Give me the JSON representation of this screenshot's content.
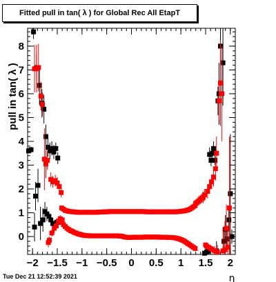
{
  "title": "Fitted pull in tan( λ ) for Global Rec All EtapT",
  "timestamp": "Tue Dec 21 12:52:39 2021",
  "chart_data": {
    "type": "scatter",
    "title": "Fitted pull in tan( λ ) for Global Rec All EtapT",
    "xlabel": "η",
    "ylabel": "pull in tan( λ )",
    "xlim": [
      -2.1,
      2.1
    ],
    "ylim": [
      -0.75,
      8.75
    ],
    "x_ticks": [
      -2,
      -1.5,
      -1,
      -0.5,
      0,
      0.5,
      1,
      1.5,
      2
    ],
    "x_tick_labels": [
      "−2",
      "−1.5",
      "−1",
      "−0.5",
      "0",
      "0.5",
      "1",
      "1.5",
      "2"
    ],
    "y_ticks": [
      0,
      1,
      2,
      3,
      4,
      5,
      6,
      7,
      8
    ],
    "y_tick_labels": [
      "0",
      "1",
      "2",
      "3",
      "4",
      "5",
      "6",
      "7",
      "8"
    ],
    "grid": false,
    "legend": "none",
    "series": [
      {
        "marker": "square",
        "color": "#000000",
        "points": [
          [
            -2.08,
            3.6,
            0.1
          ],
          [
            -2.03,
            3.65,
            0.12
          ],
          [
            -1.98,
            8.6,
            0.3
          ],
          [
            -1.96,
            0.4,
            0.6
          ],
          [
            -1.94,
            1.7,
            0.6
          ],
          [
            -1.92,
            7.1,
            0.6
          ],
          [
            -1.89,
            2.15,
            0.7
          ],
          [
            -1.86,
            6.35,
            0.8
          ],
          [
            -1.84,
            0.55,
            0.7
          ],
          [
            -1.81,
            5.6,
            0.6
          ],
          [
            -1.79,
            0.7,
            0.5
          ],
          [
            -1.77,
            5.35,
            0.6
          ],
          [
            -1.75,
            1.05,
            0.4
          ],
          [
            -1.73,
            4.2,
            0.5
          ],
          [
            -1.71,
            0.95,
            0.3
          ],
          [
            -1.69,
            3.75,
            0.4
          ],
          [
            -1.67,
            0.85,
            0.2
          ],
          [
            -1.65,
            3.6,
            0.35
          ],
          [
            -1.63,
            0.7,
            0.2
          ],
          [
            -1.61,
            3.7,
            0.3
          ],
          [
            -1.59,
            0.55,
            0.15
          ],
          [
            -1.57,
            3.55,
            0.3
          ],
          [
            -1.55,
            0.5,
            0.15
          ],
          [
            -1.53,
            3.7,
            0.25
          ],
          [
            -1.51,
            0.6,
            0.15
          ],
          [
            -1.49,
            3.3,
            0.25
          ],
          [
            -1.47,
            0.6,
            0.1
          ],
          [
            -1.44,
            0.7,
            0.1
          ],
          [
            1.48,
            -0.7,
            0.08
          ],
          [
            1.52,
            -0.65,
            0.08
          ],
          [
            1.55,
            -0.62,
            0.1
          ],
          [
            1.58,
            3.45,
            0.3
          ],
          [
            1.61,
            3.2,
            0.25
          ],
          [
            1.64,
            3.5,
            0.25
          ],
          [
            1.66,
            3.7,
            0.3
          ],
          [
            1.69,
            3.2,
            0.2
          ],
          [
            1.72,
            -0.6,
            0.4
          ],
          [
            1.75,
            5.7,
            0.6
          ],
          [
            1.77,
            6.0,
            1.3
          ],
          [
            1.8,
            8.0,
            1.5
          ],
          [
            1.85,
            7.3,
            1.8
          ],
          [
            1.87,
            -0.2,
            0.5
          ],
          [
            1.9,
            0.3,
            0.6
          ],
          [
            1.93,
            -0.1,
            0.4
          ],
          [
            1.97,
            0.7,
            0.5
          ],
          [
            2.0,
            1.8,
            2.5
          ],
          [
            2.03,
            0.0,
            0.3
          ]
        ]
      },
      {
        "marker": "square",
        "color": "#ff0000",
        "points": [
          [
            -1.96,
            7.05,
            1.0
          ],
          [
            -1.92,
            7.05,
            1.0
          ],
          [
            -1.88,
            7.1,
            1.0
          ],
          [
            -1.83,
            5.9,
            0.6
          ],
          [
            -1.8,
            5.55,
            0.5
          ],
          [
            -1.76,
            3.25,
            1.3
          ],
          [
            -1.73,
            3.05,
            0.6
          ],
          [
            -1.7,
            3.2,
            0.4
          ],
          [
            -1.68,
            -0.25,
            0.2
          ],
          [
            -1.66,
            -0.15,
            0.15
          ],
          [
            -1.63,
            2.4,
            0.3
          ],
          [
            -1.61,
            0.15,
            0.15
          ],
          [
            -1.59,
            2.3,
            0.25
          ],
          [
            -1.56,
            0.35,
            0.2
          ],
          [
            -1.54,
            2.35,
            0.25
          ],
          [
            -1.52,
            0.45,
            0.15
          ],
          [
            -1.5,
            2.25,
            0.25
          ],
          [
            -1.48,
            0.65,
            0.15
          ],
          [
            -1.46,
            2.1,
            0.2
          ],
          [
            -1.44,
            0.75,
            0.15
          ],
          [
            -1.42,
            1.85,
            0.2
          ],
          [
            -1.4,
            0.7,
            0.1
          ],
          [
            1.3,
            1.4,
            0.15
          ],
          [
            1.33,
            1.45,
            0.15
          ],
          [
            1.36,
            1.5,
            0.2
          ],
          [
            1.39,
            1.55,
            0.2
          ],
          [
            1.42,
            1.6,
            0.2
          ],
          [
            1.45,
            1.65,
            0.25
          ],
          [
            1.48,
            1.75,
            0.25
          ],
          [
            1.5,
            -0.35,
            0.1
          ],
          [
            1.52,
            -0.4,
            0.1
          ],
          [
            1.54,
            1.9,
            0.3
          ],
          [
            1.56,
            -0.45,
            0.1
          ],
          [
            1.58,
            2.1,
            0.3
          ],
          [
            1.6,
            -0.5,
            0.1
          ],
          [
            1.62,
            2.3,
            0.3
          ],
          [
            1.64,
            -0.55,
            0.15
          ],
          [
            1.66,
            2.5,
            0.4
          ],
          [
            1.68,
            -0.6,
            0.2
          ],
          [
            1.7,
            2.85,
            0.5
          ],
          [
            1.72,
            3.5,
            0.7
          ],
          [
            1.74,
            -0.65,
            0.3
          ],
          [
            1.77,
            5.7,
            0.8
          ],
          [
            1.8,
            6.45,
            1.8
          ],
          [
            1.83,
            6.0,
            2.0
          ],
          [
            1.85,
            -0.6,
            1.0
          ],
          [
            1.89,
            -0.55,
            1.2
          ],
          [
            1.92,
            0.35,
            1.0
          ],
          [
            1.95,
            -0.45,
            0.7
          ],
          [
            1.98,
            1.2,
            3.0
          ]
        ],
        "band_upper": {
          "x_start": -1.41,
          "x_end": 1.32,
          "x_step": 0.0355,
          "y": [
            1.2,
            1.15,
            1.1,
            1.08,
            1.06,
            1.05,
            1.04,
            1.04,
            1.03,
            1.02,
            1.02,
            1.02,
            1.02,
            1.02,
            1.02,
            1.02,
            1.02,
            1.02,
            1.02,
            1.02,
            1.02,
            1.03,
            1.03,
            1.03,
            1.04,
            1.04,
            1.04,
            1.05,
            1.05,
            1.05,
            1.05,
            1.05,
            1.05,
            1.05,
            1.05,
            1.05,
            1.05,
            1.05,
            1.05,
            1.05,
            1.05,
            1.05,
            1.05,
            1.05,
            1.05,
            1.05,
            1.05,
            1.05,
            1.04,
            1.04,
            1.04,
            1.04,
            1.04,
            1.04,
            1.04,
            1.04,
            1.04,
            1.04,
            1.04,
            1.04,
            1.04,
            1.04,
            1.04,
            1.04,
            1.04,
            1.04,
            1.05,
            1.05,
            1.06,
            1.07,
            1.08,
            1.1,
            1.12,
            1.15,
            1.2,
            1.25,
            1.3,
            1.35
          ]
        },
        "band_lower": {
          "x_start": -1.41,
          "x_end": 1.32,
          "x_step": 0.0355,
          "y": [
            0.6,
            0.5,
            0.42,
            0.35,
            0.3,
            0.25,
            0.22,
            0.18,
            0.15,
            0.12,
            0.1,
            0.08,
            0.06,
            0.05,
            0.04,
            0.04,
            0.03,
            0.03,
            0.03,
            0.03,
            0.03,
            0.03,
            0.03,
            0.03,
            0.03,
            0.03,
            0.03,
            0.03,
            0.03,
            0.03,
            0.03,
            0.03,
            0.03,
            0.02,
            0.02,
            0.0,
            -0.02,
            -0.03,
            -0.04,
            -0.04,
            -0.03,
            -0.03,
            -0.03,
            -0.03,
            -0.03,
            -0.03,
            -0.03,
            -0.02,
            -0.02,
            -0.02,
            -0.02,
            -0.02,
            -0.02,
            -0.02,
            -0.02,
            -0.02,
            -0.03,
            -0.03,
            -0.03,
            -0.03,
            -0.03,
            -0.04,
            -0.04,
            -0.04,
            -0.05,
            -0.06,
            -0.08,
            -0.1,
            -0.13,
            -0.16,
            -0.2,
            -0.25,
            -0.3,
            -0.35,
            -0.4,
            -0.45,
            -0.5,
            -0.55
          ]
        }
      }
    ]
  }
}
